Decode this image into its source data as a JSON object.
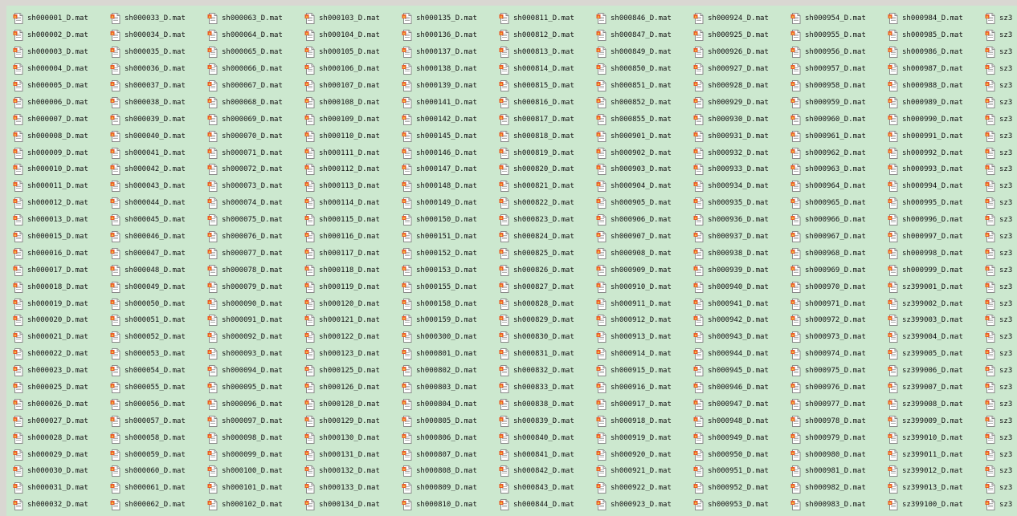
{
  "window": {
    "background": "#cce8cf"
  },
  "file_icon": "mat-file-icon",
  "columns": [
    [
      "sh000001_D.mat",
      "sh000002_D.mat",
      "sh000003_D.mat",
      "sh000004_D.mat",
      "sh000005_D.mat",
      "sh000006_D.mat",
      "sh000007_D.mat",
      "sh000008_D.mat",
      "sh000009_D.mat",
      "sh000010_D.mat",
      "sh000011_D.mat",
      "sh000012_D.mat",
      "sh000013_D.mat",
      "sh000015_D.mat",
      "sh000016_D.mat",
      "sh000017_D.mat",
      "sh000018_D.mat",
      "sh000019_D.mat",
      "sh000020_D.mat",
      "sh000021_D.mat",
      "sh000022_D.mat",
      "sh000023_D.mat",
      "sh000025_D.mat",
      "sh000026_D.mat",
      "sh000027_D.mat",
      "sh000028_D.mat",
      "sh000029_D.mat",
      "sh000030_D.mat",
      "sh000031_D.mat",
      "sh000032_D.mat"
    ],
    [
      "sh000033_D.mat",
      "sh000034_D.mat",
      "sh000035_D.mat",
      "sh000036_D.mat",
      "sh000037_D.mat",
      "sh000038_D.mat",
      "sh000039_D.mat",
      "sh000040_D.mat",
      "sh000041_D.mat",
      "sh000042_D.mat",
      "sh000043_D.mat",
      "sh000044_D.mat",
      "sh000045_D.mat",
      "sh000046_D.mat",
      "sh000047_D.mat",
      "sh000048_D.mat",
      "sh000049_D.mat",
      "sh000050_D.mat",
      "sh000051_D.mat",
      "sh000052_D.mat",
      "sh000053_D.mat",
      "sh000054_D.mat",
      "sh000055_D.mat",
      "sh000056_D.mat",
      "sh000057_D.mat",
      "sh000058_D.mat",
      "sh000059_D.mat",
      "sh000060_D.mat",
      "sh000061_D.mat",
      "sh000062_D.mat"
    ],
    [
      "sh000063_D.mat",
      "sh000064_D.mat",
      "sh000065_D.mat",
      "sh000066_D.mat",
      "sh000067_D.mat",
      "sh000068_D.mat",
      "sh000069_D.mat",
      "sh000070_D.mat",
      "sh000071_D.mat",
      "sh000072_D.mat",
      "sh000073_D.mat",
      "sh000074_D.mat",
      "sh000075_D.mat",
      "sh000076_D.mat",
      "sh000077_D.mat",
      "sh000078_D.mat",
      "sh000079_D.mat",
      "sh000090_D.mat",
      "sh000091_D.mat",
      "sh000092_D.mat",
      "sh000093_D.mat",
      "sh000094_D.mat",
      "sh000095_D.mat",
      "sh000096_D.mat",
      "sh000097_D.mat",
      "sh000098_D.mat",
      "sh000099_D.mat",
      "sh000100_D.mat",
      "sh000101_D.mat",
      "sh000102_D.mat"
    ],
    [
      "sh000103_D.mat",
      "sh000104_D.mat",
      "sh000105_D.mat",
      "sh000106_D.mat",
      "sh000107_D.mat",
      "sh000108_D.mat",
      "sh000109_D.mat",
      "sh000110_D.mat",
      "sh000111_D.mat",
      "sh000112_D.mat",
      "sh000113_D.mat",
      "sh000114_D.mat",
      "sh000115_D.mat",
      "sh000116_D.mat",
      "sh000117_D.mat",
      "sh000118_D.mat",
      "sh000119_D.mat",
      "sh000120_D.mat",
      "sh000121_D.mat",
      "sh000122_D.mat",
      "sh000123_D.mat",
      "sh000125_D.mat",
      "sh000126_D.mat",
      "sh000128_D.mat",
      "sh000129_D.mat",
      "sh000130_D.mat",
      "sh000131_D.mat",
      "sh000132_D.mat",
      "sh000133_D.mat",
      "sh000134_D.mat"
    ],
    [
      "sh000135_D.mat",
      "sh000136_D.mat",
      "sh000137_D.mat",
      "sh000138_D.mat",
      "sh000139_D.mat",
      "sh000141_D.mat",
      "sh000142_D.mat",
      "sh000145_D.mat",
      "sh000146_D.mat",
      "sh000147_D.mat",
      "sh000148_D.mat",
      "sh000149_D.mat",
      "sh000150_D.mat",
      "sh000151_D.mat",
      "sh000152_D.mat",
      "sh000153_D.mat",
      "sh000155_D.mat",
      "sh000158_D.mat",
      "sh000159_D.mat",
      "sh000300_D.mat",
      "sh000801_D.mat",
      "sh000802_D.mat",
      "sh000803_D.mat",
      "sh000804_D.mat",
      "sh000805_D.mat",
      "sh000806_D.mat",
      "sh000807_D.mat",
      "sh000808_D.mat",
      "sh000809_D.mat",
      "sh000810_D.mat"
    ],
    [
      "sh000811_D.mat",
      "sh000812_D.mat",
      "sh000813_D.mat",
      "sh000814_D.mat",
      "sh000815_D.mat",
      "sh000816_D.mat",
      "sh000817_D.mat",
      "sh000818_D.mat",
      "sh000819_D.mat",
      "sh000820_D.mat",
      "sh000821_D.mat",
      "sh000822_D.mat",
      "sh000823_D.mat",
      "sh000824_D.mat",
      "sh000825_D.mat",
      "sh000826_D.mat",
      "sh000827_D.mat",
      "sh000828_D.mat",
      "sh000829_D.mat",
      "sh000830_D.mat",
      "sh000831_D.mat",
      "sh000832_D.mat",
      "sh000833_D.mat",
      "sh000838_D.mat",
      "sh000839_D.mat",
      "sh000840_D.mat",
      "sh000841_D.mat",
      "sh000842_D.mat",
      "sh000843_D.mat",
      "sh000844_D.mat"
    ],
    [
      "sh000846_D.mat",
      "sh000847_D.mat",
      "sh000849_D.mat",
      "sh000850_D.mat",
      "sh000851_D.mat",
      "sh000852_D.mat",
      "sh000855_D.mat",
      "sh000901_D.mat",
      "sh000902_D.mat",
      "sh000903_D.mat",
      "sh000904_D.mat",
      "sh000905_D.mat",
      "sh000906_D.mat",
      "sh000907_D.mat",
      "sh000908_D.mat",
      "sh000909_D.mat",
      "sh000910_D.mat",
      "sh000911_D.mat",
      "sh000912_D.mat",
      "sh000913_D.mat",
      "sh000914_D.mat",
      "sh000915_D.mat",
      "sh000916_D.mat",
      "sh000917_D.mat",
      "sh000918_D.mat",
      "sh000919_D.mat",
      "sh000920_D.mat",
      "sh000921_D.mat",
      "sh000922_D.mat",
      "sh000923_D.mat"
    ],
    [
      "sh000924_D.mat",
      "sh000925_D.mat",
      "sh000926_D.mat",
      "sh000927_D.mat",
      "sh000928_D.mat",
      "sh000929_D.mat",
      "sh000930_D.mat",
      "sh000931_D.mat",
      "sh000932_D.mat",
      "sh000933_D.mat",
      "sh000934_D.mat",
      "sh000935_D.mat",
      "sh000936_D.mat",
      "sh000937_D.mat",
      "sh000938_D.mat",
      "sh000939_D.mat",
      "sh000940_D.mat",
      "sh000941_D.mat",
      "sh000942_D.mat",
      "sh000943_D.mat",
      "sh000944_D.mat",
      "sh000945_D.mat",
      "sh000946_D.mat",
      "sh000947_D.mat",
      "sh000948_D.mat",
      "sh000949_D.mat",
      "sh000950_D.mat",
      "sh000951_D.mat",
      "sh000952_D.mat",
      "sh000953_D.mat"
    ],
    [
      "sh000954_D.mat",
      "sh000955_D.mat",
      "sh000956_D.mat",
      "sh000957_D.mat",
      "sh000958_D.mat",
      "sh000959_D.mat",
      "sh000960_D.mat",
      "sh000961_D.mat",
      "sh000962_D.mat",
      "sh000963_D.mat",
      "sh000964_D.mat",
      "sh000965_D.mat",
      "sh000966_D.mat",
      "sh000967_D.mat",
      "sh000968_D.mat",
      "sh000969_D.mat",
      "sh000970_D.mat",
      "sh000971_D.mat",
      "sh000972_D.mat",
      "sh000973_D.mat",
      "sh000974_D.mat",
      "sh000975_D.mat",
      "sh000976_D.mat",
      "sh000977_D.mat",
      "sh000978_D.mat",
      "sh000979_D.mat",
      "sh000980_D.mat",
      "sh000981_D.mat",
      "sh000982_D.mat",
      "sh000983_D.mat"
    ],
    [
      "sh000984_D.mat",
      "sh000985_D.mat",
      "sh000986_D.mat",
      "sh000987_D.mat",
      "sh000988_D.mat",
      "sh000989_D.mat",
      "sh000990_D.mat",
      "sh000991_D.mat",
      "sh000992_D.mat",
      "sh000993_D.mat",
      "sh000994_D.mat",
      "sh000995_D.mat",
      "sh000996_D.mat",
      "sh000997_D.mat",
      "sh000998_D.mat",
      "sh000999_D.mat",
      "sz399001_D.mat",
      "sz399002_D.mat",
      "sz399003_D.mat",
      "sz399004_D.mat",
      "sz399005_D.mat",
      "sz399006_D.mat",
      "sz399007_D.mat",
      "sz399008_D.mat",
      "sz399009_D.mat",
      "sz399010_D.mat",
      "sz399011_D.mat",
      "sz399012_D.mat",
      "sz399013_D.mat",
      "sz399100_D.mat"
    ],
    [
      "sz3",
      "sz3",
      "sz3",
      "sz3",
      "sz3",
      "sz3",
      "sz3",
      "sz3",
      "sz3",
      "sz3",
      "sz3",
      "sz3",
      "sz3",
      "sz3",
      "sz3",
      "sz3",
      "sz3",
      "sz3",
      "sz3",
      "sz3",
      "sz3",
      "sz3",
      "sz3",
      "sz3",
      "sz3",
      "sz3",
      "sz3",
      "sz3",
      "sz3",
      "sz3"
    ]
  ]
}
